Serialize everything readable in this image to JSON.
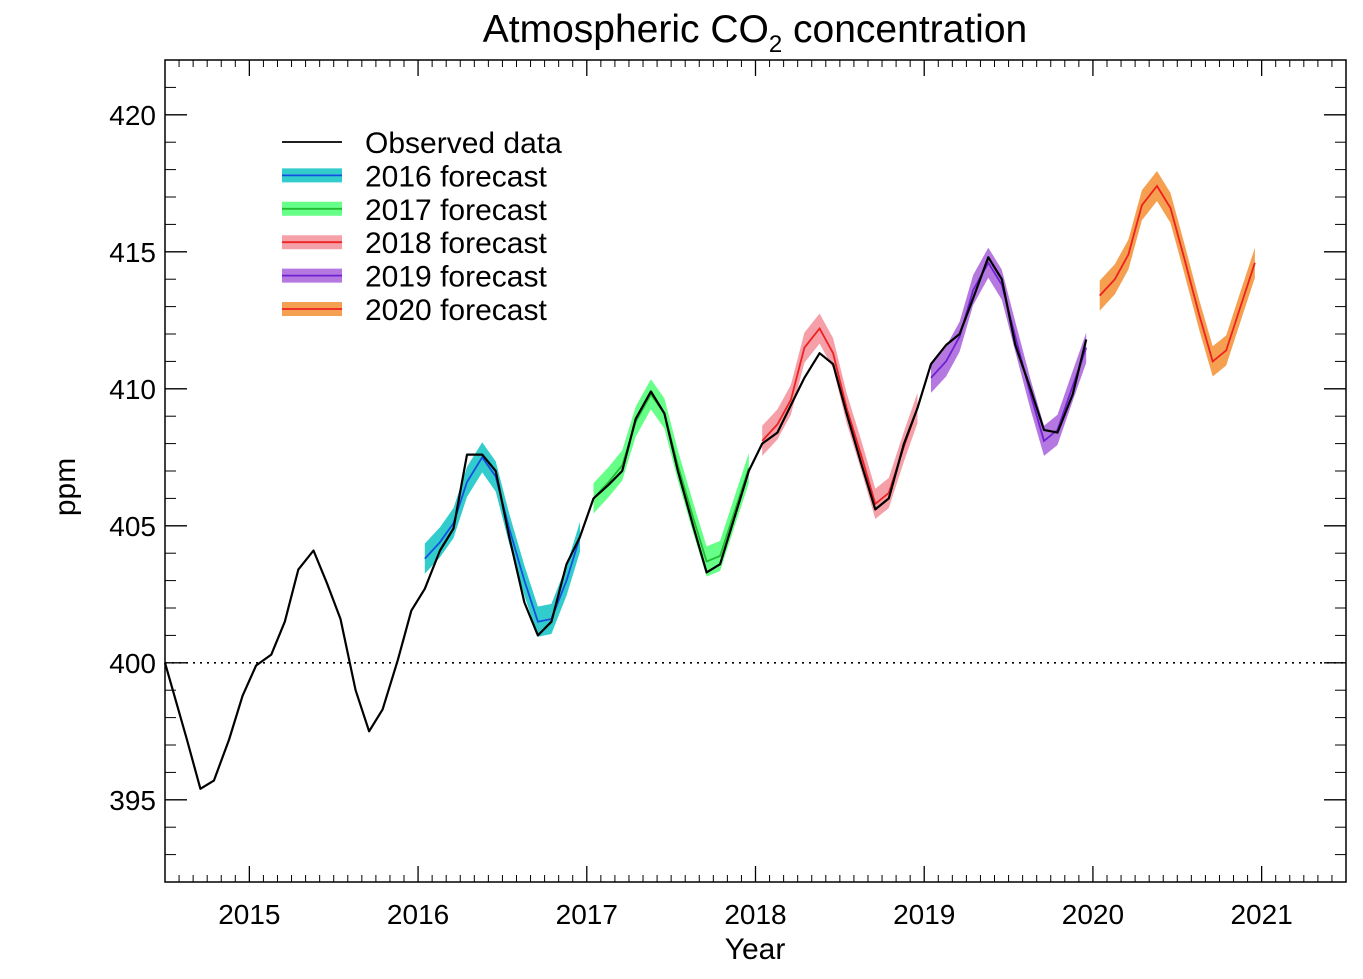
{
  "chart_data": {
    "type": "line",
    "title": {
      "main": "Atmospheric CO",
      "subscript": "2",
      "rest": " concentration"
    },
    "xlabel": "Year",
    "ylabel": "ppm",
    "xlim": [
      2014.5,
      2021.5
    ],
    "ylim": [
      392,
      422
    ],
    "x_ticks": [
      2015,
      2016,
      2017,
      2018,
      2019,
      2020,
      2021
    ],
    "x_tick_labels": [
      "2015",
      "2016",
      "2017",
      "2018",
      "2019",
      "2020",
      "2021"
    ],
    "y_ticks": [
      395,
      400,
      405,
      410,
      415,
      420
    ],
    "y_tick_labels": [
      "395",
      "400",
      "405",
      "410",
      "415",
      "420"
    ],
    "reference_line": {
      "y": 400,
      "style": "dotted"
    },
    "grid": false,
    "legend_position": "top-left",
    "series": [
      {
        "name": "Observed data",
        "color": "#000000",
        "band_color": null,
        "kind": "observed",
        "x": [
          2014.5,
          2014.63,
          2014.71,
          2014.79,
          2014.88,
          2014.96,
          2015.04,
          2015.13,
          2015.21,
          2015.29,
          2015.38,
          2015.46,
          2015.54,
          2015.63,
          2015.71,
          2015.79,
          2015.88,
          2015.96,
          2016.04,
          2016.13,
          2016.21,
          2016.29,
          2016.38,
          2016.46,
          2016.54,
          2016.63,
          2016.71,
          2016.79,
          2016.88,
          2016.96,
          2017.04,
          2017.13,
          2017.21,
          2017.29,
          2017.38,
          2017.46,
          2017.54,
          2017.63,
          2017.71,
          2017.79,
          2017.88,
          2017.96,
          2018.04,
          2018.13,
          2018.21,
          2018.29,
          2018.38,
          2018.46,
          2018.54,
          2018.63,
          2018.71,
          2018.79,
          2018.88,
          2018.96,
          2019.04,
          2019.13,
          2019.21,
          2019.29,
          2019.38,
          2019.46,
          2019.54,
          2019.63,
          2019.71,
          2019.79,
          2019.88,
          2019.96
        ],
        "y": [
          400.0,
          397.2,
          395.4,
          395.7,
          397.2,
          398.8,
          399.9,
          400.3,
          401.5,
          403.4,
          404.1,
          402.9,
          401.6,
          399.0,
          397.5,
          398.3,
          400.1,
          401.9,
          402.7,
          404.1,
          404.9,
          407.6,
          407.6,
          407.0,
          404.6,
          402.2,
          401.0,
          401.5,
          403.6,
          404.6,
          406.0,
          406.5,
          407.0,
          408.9,
          409.9,
          409.1,
          407.0,
          405.0,
          403.3,
          403.6,
          405.4,
          407.0,
          408.0,
          408.4,
          409.4,
          410.4,
          411.3,
          410.9,
          409.1,
          407.2,
          405.6,
          406.0,
          408.0,
          409.3,
          410.9,
          411.6,
          412.0,
          413.3,
          414.8,
          414.0,
          411.6,
          410.0,
          408.5,
          408.4,
          409.8,
          411.8
        ]
      },
      {
        "name": "2016 forecast",
        "color": "#1450e0",
        "band_color": "#33cccc",
        "kind": "forecast",
        "band_width": 0.55,
        "x": [
          2016.04,
          2016.13,
          2016.21,
          2016.29,
          2016.38,
          2016.46,
          2016.54,
          2016.63,
          2016.71,
          2016.79,
          2016.88,
          2016.96
        ],
        "y": [
          403.8,
          404.4,
          405.1,
          406.6,
          407.5,
          406.8,
          404.9,
          403.0,
          401.5,
          401.6,
          403.0,
          404.6
        ]
      },
      {
        "name": "2017 forecast",
        "color": "#22bb33",
        "band_color": "#66ff88",
        "kind": "forecast",
        "band_width": 0.55,
        "x": [
          2017.04,
          2017.13,
          2017.21,
          2017.29,
          2017.38,
          2017.46,
          2017.54,
          2017.63,
          2017.71,
          2017.79,
          2017.88,
          2017.96
        ],
        "y": [
          406.0,
          406.6,
          407.2,
          408.8,
          409.8,
          409.1,
          407.2,
          405.3,
          403.7,
          403.9,
          405.6,
          407.1
        ]
      },
      {
        "name": "2018 forecast",
        "color": "#ee2020",
        "band_color": "#f5a0a8",
        "kind": "forecast",
        "band_width": 0.55,
        "x": [
          2018.04,
          2018.13,
          2018.21,
          2018.29,
          2018.38,
          2018.46,
          2018.54,
          2018.63,
          2018.71,
          2018.79,
          2018.88,
          2018.96
        ],
        "y": [
          408.1,
          408.7,
          409.6,
          411.5,
          412.2,
          411.3,
          409.3,
          407.5,
          405.8,
          406.2,
          407.9,
          409.3
        ]
      },
      {
        "name": "2019 forecast",
        "color": "#7020d0",
        "band_color": "#b478e0",
        "kind": "forecast",
        "band_width": 0.55,
        "x": [
          2019.04,
          2019.13,
          2019.21,
          2019.29,
          2019.38,
          2019.46,
          2019.54,
          2019.63,
          2019.71,
          2019.79,
          2019.88,
          2019.96
        ],
        "y": [
          410.4,
          411.0,
          411.9,
          413.6,
          414.6,
          413.8,
          411.9,
          409.8,
          408.1,
          408.5,
          410.1,
          411.5
        ]
      },
      {
        "name": "2020 forecast",
        "color": "#ee2020",
        "band_color": "#f5a050",
        "kind": "forecast",
        "band_width": 0.55,
        "x": [
          2020.04,
          2020.13,
          2020.21,
          2020.29,
          2020.38,
          2020.46,
          2020.54,
          2020.63,
          2020.71,
          2020.79,
          2020.88,
          2020.96
        ],
        "y": [
          413.4,
          414.0,
          414.9,
          416.7,
          417.4,
          416.6,
          414.8,
          412.7,
          411.0,
          411.4,
          413.1,
          414.6
        ]
      }
    ]
  }
}
